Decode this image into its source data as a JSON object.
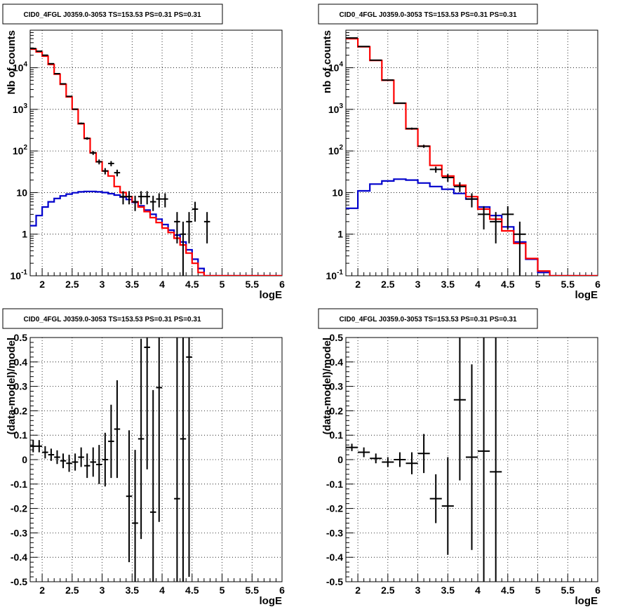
{
  "figure": {
    "pad_titles": [
      "CID0_4FGL J0359.0-3053 TS=153.53 PS=0.31 PS=0.31",
      "CID0_4FGL J0359.0-3053 TS=153.53 PS=0.31 PS=0.31",
      "CID0_4FGL J0359.0-3053 TS=153.53 PS=0.31 PS=0.31",
      "CID0_4FGL J0359.0-3053 TS=153.53 PS=0.31 PS=0.31"
    ]
  },
  "colors": {
    "total_model": "#ff0000",
    "source_model": "#0000cc",
    "data": "#000000",
    "grid": "#000000"
  },
  "chart_data": [
    {
      "type": "line",
      "title": "CID0_4FGL J0359.0-3053 TS=153.53 PS=0.31 PS=0.31",
      "xlabel": "logE",
      "ylabel": "Nb of counts",
      "xlim": [
        1.8,
        6.0
      ],
      "ylim": [
        0.1,
        80000
      ],
      "yscale": "log",
      "grid": true,
      "xticks": [
        "2",
        "2.5",
        "3",
        "3.5",
        "4",
        "4.5",
        "5",
        "5.5",
        "6"
      ],
      "yticks": [
        "10^-1",
        "1",
        "10",
        "10^2",
        "10^3",
        "10^4"
      ],
      "bin_edges": [
        1.8,
        1.9,
        2.0,
        2.1,
        2.2,
        2.3,
        2.4,
        2.5,
        2.6,
        2.7,
        2.8,
        2.9,
        3.0,
        3.1,
        3.2,
        3.3,
        3.4,
        3.5,
        3.6,
        3.7,
        3.8,
        3.9,
        4.0,
        4.1,
        4.2,
        4.3,
        4.4,
        4.5,
        4.6,
        4.7,
        4.8,
        4.9,
        5.0,
        5.1,
        5.2,
        5.3,
        5.4,
        5.5,
        5.6,
        5.7,
        5.8,
        5.9,
        6.0
      ],
      "series": [
        {
          "values": [
            28000,
            24000,
            19000,
            12000,
            7000,
            4000,
            2000,
            1000,
            450,
            200,
            90,
            55,
            33,
            25,
            14,
            10,
            8,
            6,
            4.5,
            3.5,
            2.5,
            1.9,
            1.4,
            1.1,
            0.8,
            0.55,
            0.35,
            0.2,
            0.12,
            0.1,
            0.1,
            0.1,
            0.1,
            0.1,
            0.1,
            0.1,
            0.1,
            0.1,
            0.1,
            0.1,
            0.1,
            0.1
          ]
        },
        {
          "values": [
            1.6,
            2.8,
            4.5,
            6.0,
            7.2,
            8.3,
            9.2,
            9.9,
            10.4,
            10.6,
            10.6,
            10.4,
            10.0,
            9.4,
            8.7,
            7.8,
            6.8,
            5.8,
            4.8,
            3.8,
            3.0,
            2.3,
            1.7,
            1.25,
            0.95,
            0.65,
            0.42,
            0.25,
            0.15,
            0.1,
            0.1,
            0.1,
            0.1,
            0.1,
            0.1,
            0.1,
            0.1,
            0.1,
            0.1,
            0.1,
            0.1,
            0.1
          ]
        },
        {
          "x": [
            1.85,
            1.95,
            2.05,
            2.15,
            2.25,
            2.35,
            2.45,
            2.55,
            2.65,
            2.75,
            2.85,
            2.95,
            3.05,
            3.15,
            3.25,
            3.35,
            3.45,
            3.55,
            3.65,
            3.75,
            3.85,
            3.95,
            4.05,
            4.25,
            4.35,
            4.45,
            4.55,
            4.75
          ],
          "y": [
            29000,
            25000,
            20000,
            12500,
            7200,
            4100,
            2050,
            1010,
            460,
            200,
            90,
            55,
            33,
            50,
            30,
            8,
            8,
            6,
            8,
            8,
            6,
            7,
            7,
            2,
            1,
            2,
            4,
            2
          ],
          "yerr_low": [
            170,
            160,
            140,
            110,
            85,
            64,
            45,
            32,
            21,
            14,
            9.5,
            7.4,
            5.7,
            7,
            5.5,
            2.8,
            2.8,
            2.4,
            2.8,
            2.8,
            2.4,
            2.6,
            2.6,
            1.4,
            0.999,
            1.4,
            2,
            1.4
          ],
          "yerr_high": [
            170,
            160,
            140,
            110,
            85,
            64,
            45,
            32,
            21,
            14,
            9.5,
            7.4,
            5.7,
            7,
            5.5,
            2.8,
            2.8,
            2.4,
            2.8,
            2.8,
            2.4,
            2.6,
            2.6,
            1.4,
            1,
            1.4,
            2,
            1.4
          ]
        }
      ]
    },
    {
      "type": "line",
      "title": "CID0_4FGL J0359.0-3053 TS=153.53 PS=0.31 PS=0.31",
      "xlabel": "logE",
      "ylabel": "nb of counts",
      "xlim": [
        1.8,
        6.0
      ],
      "ylim": [
        0.1,
        80000
      ],
      "yscale": "log",
      "grid": true,
      "xticks": [
        "2",
        "2.5",
        "3",
        "3.5",
        "4",
        "4.5",
        "5",
        "5.5",
        "6"
      ],
      "yticks": [
        "10^-1",
        "1",
        "10",
        "10^2",
        "10^3",
        "10^4"
      ],
      "bin_edges": [
        1.8,
        2.0,
        2.2,
        2.4,
        2.6,
        2.8,
        3.0,
        3.2,
        3.4,
        3.6,
        3.8,
        4.0,
        4.2,
        4.4,
        4.6,
        4.8,
        5.0,
        5.2,
        5.4,
        5.6,
        5.8,
        6.0
      ],
      "series": [
        {
          "values": [
            50000,
            32000,
            15000,
            5000,
            1400,
            340,
            130,
            45,
            25,
            15,
            8,
            4,
            2.3,
            1.2,
            0.6,
            0.26,
            0.13,
            0.1,
            0.1,
            0.1,
            0.1
          ]
        },
        {
          "values": [
            4.2,
            11,
            16,
            19,
            21,
            20,
            17,
            14,
            12,
            9.5,
            7,
            4.5,
            2.8,
            1.5,
            0.65,
            0.25,
            0.12,
            0.1,
            0.1,
            0.1,
            0.1
          ]
        },
        {
          "x": [
            1.9,
            2.1,
            2.3,
            2.5,
            2.7,
            2.9,
            3.1,
            3.3,
            3.5,
            3.7,
            3.9,
            4.1,
            4.3,
            4.5,
            4.7
          ],
          "y": [
            52000,
            32500,
            15200,
            5060,
            1410,
            345,
            130,
            36,
            23,
            14,
            7,
            3,
            2,
            3,
            1
          ],
          "yerr_low": [
            230,
            180,
            120,
            70,
            38,
            19,
            11,
            6,
            4.8,
            3.7,
            2.6,
            1.7,
            1.4,
            1.7,
            0.999
          ],
          "yerr_high": [
            230,
            180,
            120,
            70,
            38,
            19,
            11,
            6,
            4.8,
            3.7,
            2.6,
            1.7,
            1.4,
            1.7,
            1
          ]
        }
      ]
    },
    {
      "type": "scatter",
      "title": "CID0_4FGL J0359.0-3053 TS=153.53 PS=0.31 PS=0.31",
      "xlabel": "logE",
      "ylabel": "(data-model)/model",
      "xlim": [
        1.8,
        6.0
      ],
      "ylim": [
        -0.5,
        0.5
      ],
      "grid": true,
      "xticks": [
        "2",
        "2.5",
        "3",
        "3.5",
        "4",
        "4.5",
        "5",
        "5.5",
        "6"
      ],
      "yticks": [
        "-0.5",
        "-0.4",
        "-0.3",
        "-0.2",
        "-0.1",
        "0",
        "0.1",
        "0.2",
        "0.3",
        "0.4",
        "0.5"
      ],
      "x": [
        1.85,
        1.95,
        2.05,
        2.15,
        2.25,
        2.35,
        2.45,
        2.55,
        2.65,
        2.75,
        2.85,
        2.95,
        3.05,
        3.15,
        3.25,
        3.45,
        3.55,
        3.65,
        3.75,
        3.85,
        3.95,
        4.25,
        4.35,
        4.45
      ],
      "y": [
        0.055,
        0.055,
        0.03,
        0.02,
        0.01,
        -0.005,
        -0.015,
        -0.01,
        0.01,
        -0.025,
        -0.01,
        -0.02,
        0.0,
        0.075,
        0.125,
        -0.15,
        -0.26,
        0.085,
        0.46,
        -0.215,
        0.295,
        -0.16,
        0.085,
        0.42
      ],
      "yerr": [
        0.025,
        0.025,
        0.025,
        0.025,
        0.028,
        0.03,
        0.035,
        0.035,
        0.04,
        0.05,
        0.06,
        0.08,
        0.11,
        0.15,
        0.2,
        0.27,
        0.3,
        0.41,
        0.5,
        0.5,
        0.55,
        0.7,
        0.7,
        0.9
      ],
      "xerr": 0.05
    },
    {
      "type": "scatter",
      "title": "CID0_4FGL J0359.0-3053 TS=153.53 PS=0.31 PS=0.31",
      "xlabel": "logE",
      "ylabel": "(data-model)/model",
      "xlim": [
        1.8,
        6.0
      ],
      "ylim": [
        -0.5,
        0.5
      ],
      "grid": true,
      "xticks": [
        "2",
        "2.5",
        "3",
        "3.5",
        "4",
        "4.5",
        "5",
        "5.5",
        "6"
      ],
      "yticks": [
        "-0.5",
        "-0.4",
        "-0.3",
        "-0.2",
        "-0.1",
        "0",
        "0.1",
        "0.2",
        "0.3",
        "0.4",
        "0.5"
      ],
      "x": [
        1.9,
        2.1,
        2.3,
        2.5,
        2.7,
        2.9,
        3.1,
        3.3,
        3.5,
        3.7,
        3.9,
        4.1,
        4.3
      ],
      "y": [
        0.05,
        0.03,
        0.005,
        -0.01,
        0.0,
        -0.015,
        0.025,
        -0.16,
        -0.19,
        0.245,
        0.01,
        0.035,
        -0.05
      ],
      "yerr": [
        0.015,
        0.02,
        0.02,
        0.02,
        0.03,
        0.045,
        0.08,
        0.1,
        0.2,
        0.33,
        0.38,
        0.6,
        0.65
      ],
      "xerr": 0.1
    }
  ]
}
